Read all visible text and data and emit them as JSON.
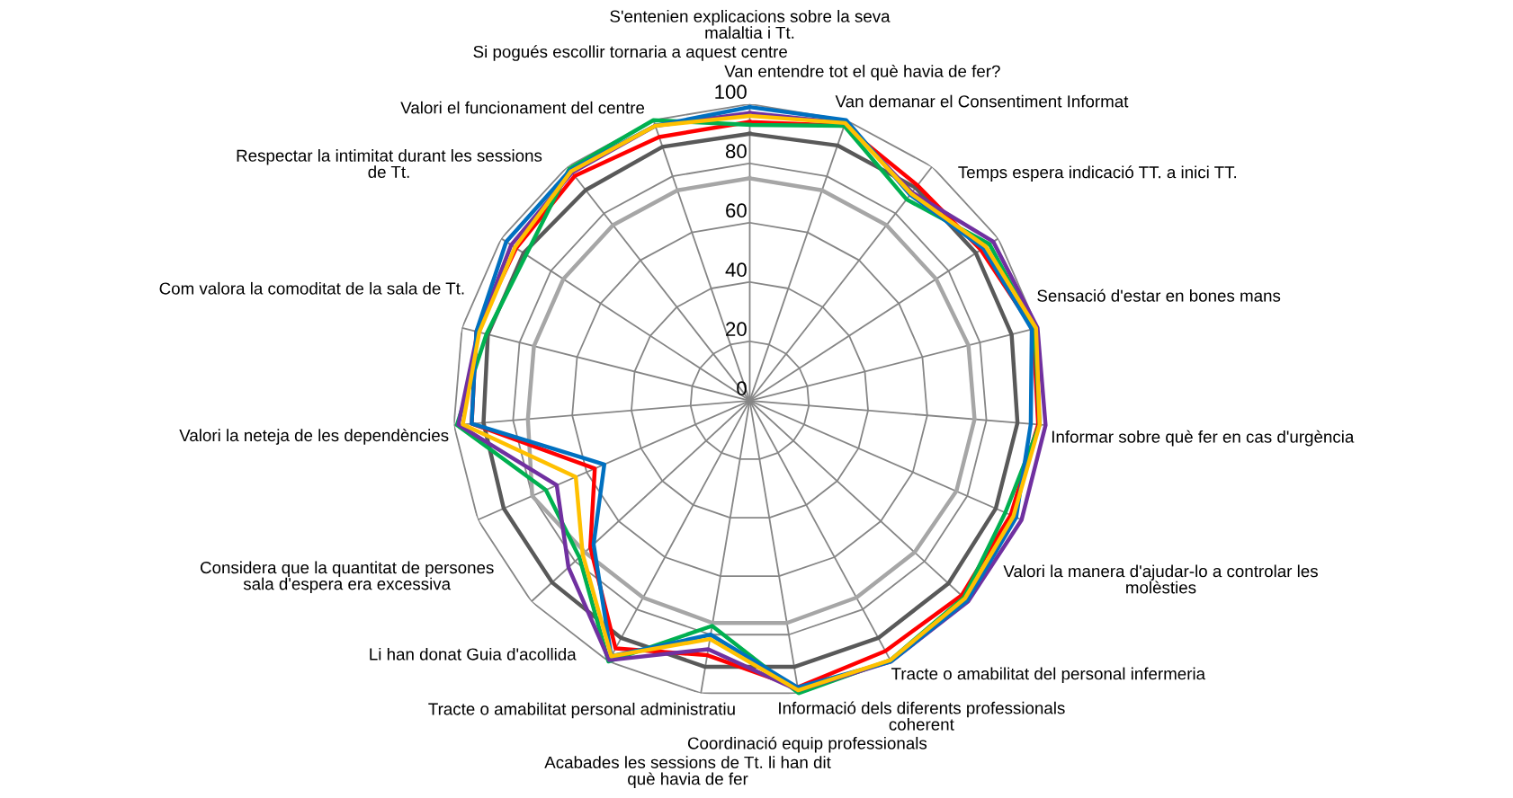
{
  "chart_data": {
    "type": "radar",
    "categories": [
      "S'entenien explicacions sobre la seva\nmalaltia i Tt.",
      "Van entendre tot el què havia de fer?",
      "Van demanar el Consentiment Informat",
      "Temps espera indicació TT. a inici TT.",
      "Sensació d'estar en bones mans",
      "Informar sobre què fer en cas d'urgència",
      "Valori la manera d'ajudar-lo a controlar les\nmolèsties",
      "Tracte o amabilitat del personal infermeria",
      "Informació dels diferents professionals\ncoherent",
      "Coordinació equip professionals",
      "Acabades les sessions de Tt. li han dit\nquè havia de fer",
      "Tracte o amabilitat personal administratiu",
      "Li han donat Guia d'acollida",
      "Considera que la quantitat de persones\nsala d'espera era excessiva",
      "Valori la neteja de les dependències",
      "Com valora la comoditat de la sala de Tt.",
      "Respectar la intimitat durant les sessions\nde Tt.",
      "Valori el funcionament del centre",
      "Si pogués escollir tornaria a aquest centre"
    ],
    "series": [
      {
        "color": "#a6a6a6",
        "values": [
          75,
          75,
          75,
          75,
          76,
          76,
          76,
          75.5,
          75.5,
          76,
          76,
          75.5,
          75.5,
          80,
          75,
          75,
          75,
          75,
          75
        ]
      },
      {
        "color": "#595959",
        "values": [
          90,
          91,
          91,
          91,
          91,
          90.5,
          90.5,
          91,
          91,
          91,
          91,
          91,
          90.5,
          90.5,
          90,
          91,
          91,
          90,
          90.5
        ]
      },
      {
        "color": "#ff0000",
        "values": [
          94,
          98,
          92,
          93,
          98.5,
          97.5,
          96,
          97,
          96,
          98,
          87,
          95,
          73,
          57,
          94,
          95,
          94,
          96,
          94
        ]
      },
      {
        "color": "#00b050",
        "values": [
          93,
          98,
          86,
          96.5,
          99,
          98,
          94,
          98,
          99.5,
          100,
          77,
          100,
          78,
          75,
          99,
          91.5,
          90,
          99,
          100
        ]
      },
      {
        "color": "#7030a0",
        "values": [
          97,
          99,
          89,
          98,
          100,
          100,
          100,
          100,
          100,
          99,
          85,
          99.5,
          83,
          71,
          98.5,
          94.5,
          96,
          97.5,
          98
        ]
      },
      {
        "color": "#0070c0",
        "values": [
          99,
          100,
          88,
          94,
          98,
          95,
          98,
          99.5,
          100,
          98,
          80,
          98,
          71.5,
          53.5,
          94,
          95,
          98,
          98.5,
          98
        ]
      },
      {
        "color": "#ffc000",
        "values": [
          96,
          99,
          88.5,
          95,
          99.5,
          98,
          97,
          98.5,
          99.5,
          99,
          81.5,
          98,
          76.5,
          64,
          97,
          94,
          94.5,
          98,
          98
        ]
      }
    ],
    "ylim": [
      0,
      100
    ],
    "yticks": [
      0,
      20,
      40,
      60,
      80,
      100
    ],
    "grid": true
  }
}
